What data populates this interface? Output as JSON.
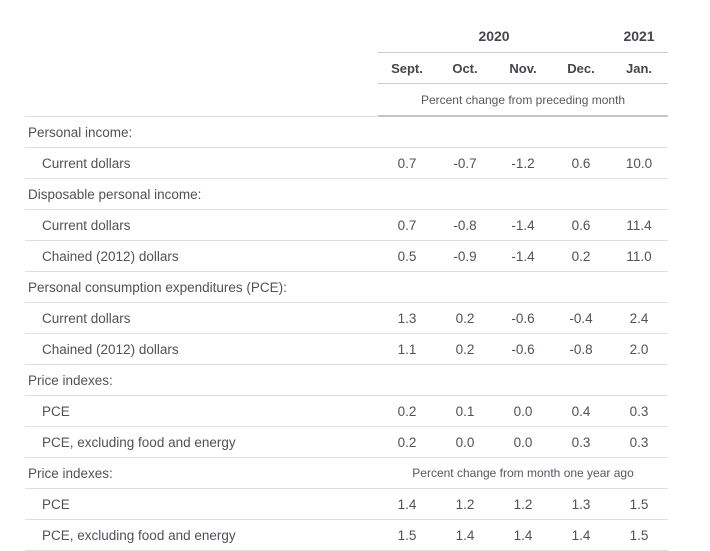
{
  "chart_data": {
    "type": "table",
    "title": "",
    "column_groups": [
      {
        "label": "2020",
        "span": 4
      },
      {
        "label": "2021",
        "span": 1
      }
    ],
    "columns": [
      "Sept.",
      "Oct.",
      "Nov.",
      "Dec.",
      "Jan."
    ],
    "unit_note_top": "Percent change from preceding month",
    "unit_note_bottom": "Percent change from month one year ago",
    "rows": [
      {
        "type": "section",
        "label": "Personal income:"
      },
      {
        "type": "data",
        "label": "Current dollars",
        "values": [
          "0.7",
          "-0.7",
          "-1.2",
          "0.6",
          "10.0"
        ]
      },
      {
        "type": "section",
        "label": "Disposable personal income:"
      },
      {
        "type": "data",
        "label": "Current dollars",
        "values": [
          "0.7",
          "-0.8",
          "-1.4",
          "0.6",
          "11.4"
        ]
      },
      {
        "type": "data",
        "label": "Chained (2012) dollars",
        "values": [
          "0.5",
          "-0.9",
          "-1.4",
          "0.2",
          "11.0"
        ]
      },
      {
        "type": "section",
        "label": "Personal consumption expenditures (PCE):"
      },
      {
        "type": "data",
        "label": "Current dollars",
        "values": [
          "1.3",
          "0.2",
          "-0.6",
          "-0.4",
          "2.4"
        ]
      },
      {
        "type": "data",
        "label": "Chained (2012) dollars",
        "values": [
          "1.1",
          "0.2",
          "-0.6",
          "-0.8",
          "2.0"
        ]
      },
      {
        "type": "section",
        "label": "Price indexes:"
      },
      {
        "type": "data",
        "label": "PCE",
        "values": [
          "0.2",
          "0.1",
          "0.0",
          "0.4",
          "0.3"
        ]
      },
      {
        "type": "data",
        "label": "PCE, excluding food and energy",
        "values": [
          "0.2",
          "0.0",
          "0.0",
          "0.3",
          "0.3"
        ]
      },
      {
        "type": "section-note",
        "label": "Price indexes:",
        "note": "Percent change from month one year ago"
      },
      {
        "type": "data",
        "label": "PCE",
        "values": [
          "1.4",
          "1.2",
          "1.2",
          "1.3",
          "1.5"
        ]
      },
      {
        "type": "data",
        "label": "PCE, excluding food and energy",
        "values": [
          "1.5",
          "1.4",
          "1.4",
          "1.4",
          "1.5"
        ]
      }
    ],
    "colors": {
      "body_text": "#4f5257",
      "header_text": "#43474c",
      "row_border": "#dfdfdf",
      "header_border": "#cbcbcb",
      "unit_rule": "#c5c5c5",
      "background": "#ffffff"
    },
    "layout": {
      "grid": "horizontal row rules only",
      "legend": "none"
    }
  }
}
